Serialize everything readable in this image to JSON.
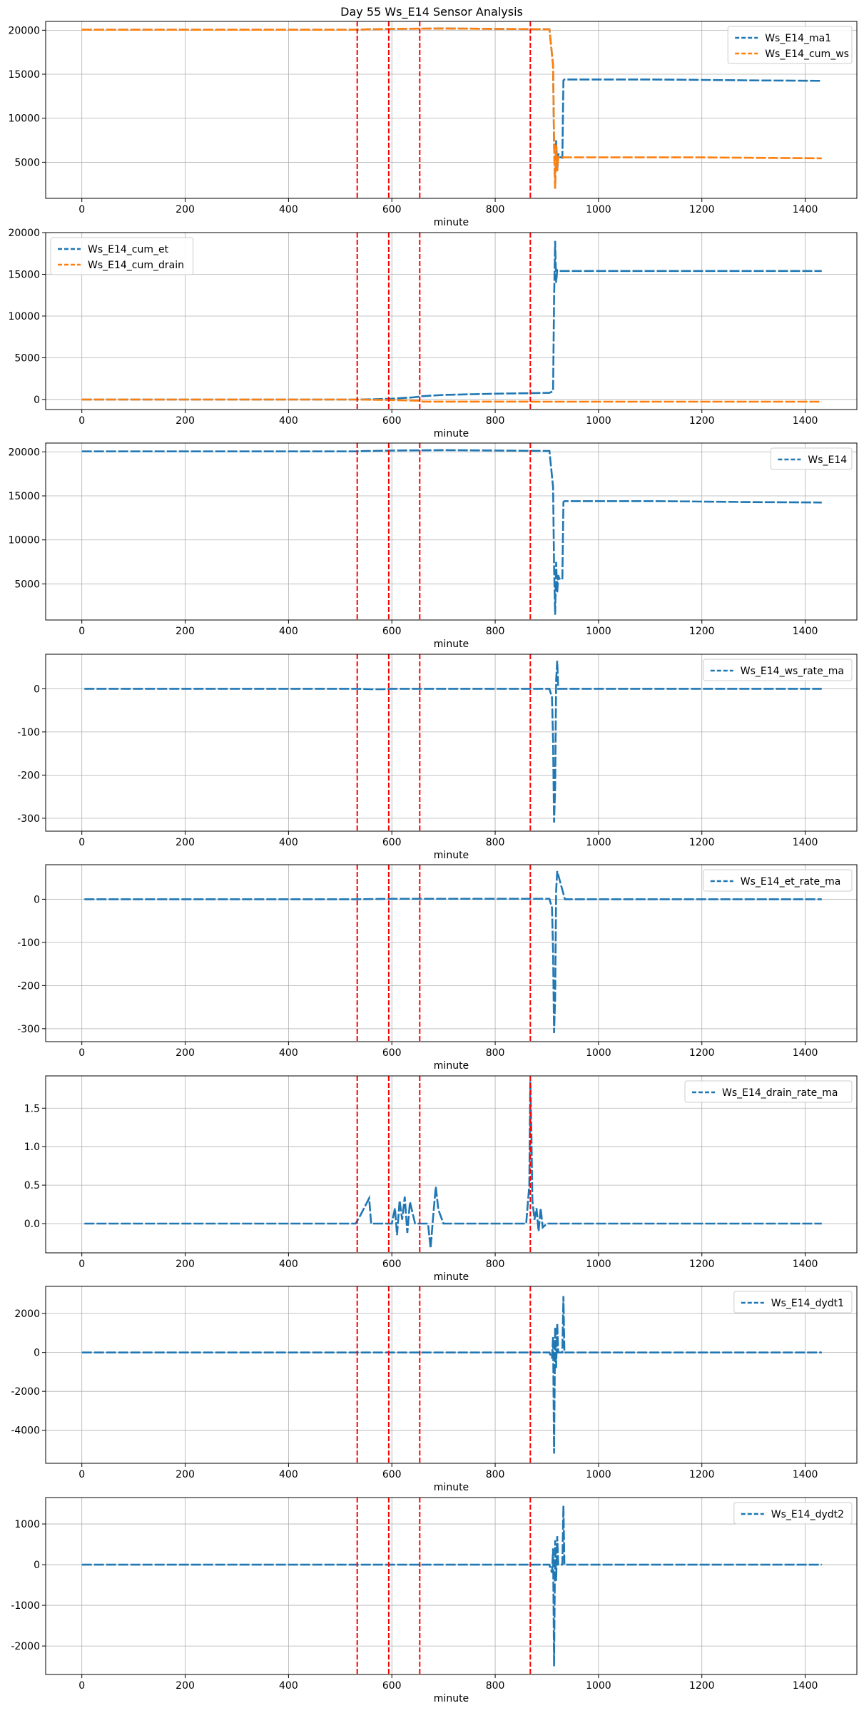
{
  "figure": {
    "title": "Day 55 Ws_E14 Sensor Analysis"
  },
  "colors": {
    "blue": "#1f77b4",
    "orange": "#ff7f0e",
    "red": "#ff0000",
    "grid": "#b0b0b0"
  },
  "event_lines": [
    533,
    594,
    654,
    868
  ],
  "chart_data": [
    {
      "type": "line",
      "title": "",
      "xlabel": "minute",
      "ylabel": "",
      "xlim": [
        -70,
        1500
      ],
      "ylim": [
        900,
        21000
      ],
      "xticks": [
        0,
        200,
        400,
        600,
        800,
        1000,
        1200,
        1400
      ],
      "yticks": [
        5000,
        10000,
        15000,
        20000
      ],
      "ytick_labels": [
        "5000",
        "10000",
        "15000",
        "20000"
      ],
      "legend_loc": "top-right",
      "series": [
        {
          "name": "Ws_E14_ma1",
          "color": "blue",
          "x": [
            0,
            532,
            536,
            600,
            700,
            800,
            905,
            912,
            914,
            916,
            918,
            920,
            922,
            924,
            930,
            932,
            934,
            936,
            1000,
            1100,
            1200,
            1300,
            1432
          ],
          "y": [
            20050,
            20050,
            20080,
            20150,
            20200,
            20150,
            20100,
            16000,
            7000,
            2000,
            7500,
            4000,
            6000,
            5600,
            5500,
            14300,
            14400,
            14400,
            14400,
            14400,
            14350,
            14300,
            14250
          ]
        },
        {
          "name": "Ws_E14_cum_ws",
          "color": "orange",
          "x": [
            0,
            532,
            536,
            600,
            700,
            800,
            905,
            912,
            914,
            916,
            918,
            920,
            922,
            926,
            1000,
            1100,
            1200,
            1300,
            1432
          ],
          "y": [
            20050,
            20050,
            20080,
            20150,
            20200,
            20150,
            20100,
            16000,
            7000,
            2000,
            7000,
            4000,
            5600,
            5550,
            5550,
            5550,
            5550,
            5500,
            5450
          ]
        }
      ]
    },
    {
      "type": "line",
      "title": "",
      "xlabel": "minute",
      "ylabel": "",
      "xlim": [
        -70,
        1500
      ],
      "ylim": [
        -1200,
        20000
      ],
      "xticks": [
        0,
        200,
        400,
        600,
        800,
        1000,
        1200,
        1400
      ],
      "yticks": [
        0,
        5000,
        10000,
        15000,
        20000
      ],
      "ytick_labels": [
        "0",
        "5000",
        "10000",
        "15000",
        "20000"
      ],
      "legend_loc": "top-left",
      "series": [
        {
          "name": "Ws_E14_cum_et",
          "color": "blue",
          "x": [
            0,
            532,
            560,
            600,
            640,
            660,
            700,
            800,
            860,
            905,
            912,
            914,
            916,
            918,
            920,
            922,
            930,
            1000,
            1100,
            1200,
            1300,
            1432
          ],
          "y": [
            0,
            0,
            20,
            100,
            250,
            400,
            550,
            700,
            750,
            800,
            1000,
            12000,
            19000,
            14000,
            15500,
            15400,
            15400,
            15400,
            15400,
            15400,
            15400,
            15400
          ]
        },
        {
          "name": "Ws_E14_cum_drain",
          "color": "orange",
          "x": [
            0,
            532,
            600,
            654,
            660,
            700,
            800,
            900,
            1000,
            1100,
            1200,
            1300,
            1432
          ],
          "y": [
            0,
            0,
            -60,
            -150,
            -250,
            -250,
            -250,
            -260,
            -260,
            -260,
            -260,
            -260,
            -260
          ]
        }
      ]
    },
    {
      "type": "line",
      "title": "",
      "xlabel": "minute",
      "ylabel": "",
      "xlim": [
        -70,
        1500
      ],
      "ylim": [
        900,
        21000
      ],
      "xticks": [
        0,
        200,
        400,
        600,
        800,
        1000,
        1200,
        1400
      ],
      "yticks": [
        5000,
        10000,
        15000,
        20000
      ],
      "ytick_labels": [
        "5000",
        "10000",
        "15000",
        "20000"
      ],
      "legend_loc": "top-right",
      "series": [
        {
          "name": "Ws_E14",
          "color": "blue",
          "x": [
            0,
            532,
            536,
            600,
            700,
            800,
            905,
            912,
            914,
            916,
            918,
            920,
            922,
            924,
            930,
            932,
            934,
            936,
            1000,
            1100,
            1200,
            1300,
            1432
          ],
          "y": [
            20050,
            20050,
            20080,
            20150,
            20200,
            20150,
            20100,
            16000,
            7000,
            1500,
            7500,
            4000,
            6000,
            5600,
            5500,
            14300,
            14400,
            14400,
            14400,
            14400,
            14350,
            14300,
            14250
          ]
        }
      ]
    },
    {
      "type": "line",
      "title": "",
      "xlabel": "minute",
      "ylabel": "",
      "xlim": [
        -70,
        1500
      ],
      "ylim": [
        -330,
        80
      ],
      "xticks": [
        0,
        200,
        400,
        600,
        800,
        1000,
        1200,
        1400
      ],
      "yticks": [
        -300,
        -200,
        -100,
        0
      ],
      "ytick_labels": [
        "-300",
        "-200",
        "-100",
        "0"
      ],
      "legend_loc": "top-right",
      "series": [
        {
          "name": "Ws_E14_ws_rate_ma",
          "color": "blue",
          "x": [
            5,
            532,
            560,
            580,
            600,
            700,
            800,
            905,
            910,
            912,
            914,
            916,
            918,
            920,
            922,
            924,
            1000,
            1100,
            1200,
            1300,
            1432
          ],
          "y": [
            0,
            0,
            -1,
            -1,
            0,
            0,
            0,
            0,
            -20,
            -120,
            -310,
            -230,
            20,
            65,
            0,
            0,
            0,
            0,
            0,
            0,
            0
          ]
        }
      ]
    },
    {
      "type": "line",
      "title": "",
      "xlabel": "minute",
      "ylabel": "",
      "xlim": [
        -70,
        1500
      ],
      "ylim": [
        -330,
        80
      ],
      "xticks": [
        0,
        200,
        400,
        600,
        800,
        1000,
        1200,
        1400
      ],
      "yticks": [
        -300,
        -200,
        -100,
        0
      ],
      "ytick_labels": [
        "-300",
        "-200",
        "-100",
        "0"
      ],
      "legend_loc": "top-right",
      "series": [
        {
          "name": "Ws_E14_et_rate_ma",
          "color": "blue",
          "x": [
            5,
            532,
            600,
            700,
            800,
            905,
            910,
            912,
            914,
            916,
            918,
            920,
            935,
            940,
            1000,
            1100,
            1200,
            1300,
            1432
          ],
          "y": [
            0,
            0,
            1,
            1,
            1,
            1,
            -20,
            -120,
            -310,
            -230,
            20,
            65,
            0,
            0,
            0,
            0,
            0,
            0,
            0
          ]
        }
      ]
    },
    {
      "type": "line",
      "title": "",
      "xlabel": "minute",
      "ylabel": "",
      "xlim": [
        -70,
        1500
      ],
      "ylim": [
        -0.38,
        1.92
      ],
      "xticks": [
        0,
        200,
        400,
        600,
        800,
        1000,
        1200,
        1400
      ],
      "yticks": [
        0.0,
        0.5,
        1.0,
        1.5
      ],
      "ytick_labels": [
        "0.0",
        "0.5",
        "1.0",
        "1.5"
      ],
      "legend_loc": "top-right",
      "series": [
        {
          "name": "Ws_E14_drain_rate_ma",
          "color": "blue",
          "x": [
            5,
            530,
            540,
            556,
            560,
            600,
            606,
            610,
            615,
            620,
            625,
            630,
            635,
            645,
            670,
            675,
            680,
            685,
            690,
            700,
            860,
            866,
            868,
            870,
            872,
            876,
            880,
            884,
            888,
            892,
            900,
            1000,
            1100,
            1200,
            1300,
            1432
          ],
          "y": [
            0,
            0,
            0.12,
            0.33,
            0,
            0,
            0.2,
            -0.15,
            0.3,
            0.05,
            0.35,
            -0.12,
            0.28,
            0,
            0,
            -0.32,
            0.1,
            0.48,
            0.18,
            0,
            0,
            0.5,
            1.85,
            1.2,
            0.3,
            0.05,
            0.2,
            -0.1,
            0.2,
            -0.05,
            0,
            0,
            0,
            0,
            0,
            0
          ]
        }
      ]
    },
    {
      "type": "line",
      "title": "",
      "xlabel": "minute",
      "ylabel": "",
      "xlim": [
        -70,
        1500
      ],
      "ylim": [
        -5700,
        3400
      ],
      "xticks": [
        0,
        200,
        400,
        600,
        800,
        1000,
        1200,
        1400
      ],
      "yticks": [
        -4000,
        -2000,
        0,
        2000
      ],
      "ytick_labels": [
        "-4000",
        "-2000",
        "0",
        "2000"
      ],
      "legend_loc": "top-right",
      "series": [
        {
          "name": "Ws_E14_dydt1",
          "color": "blue",
          "x": [
            0,
            905,
            910,
            912,
            914,
            916,
            918,
            920,
            922,
            928,
            930,
            932,
            934,
            940,
            1000,
            1100,
            1200,
            1300,
            1432
          ],
          "y": [
            0,
            0,
            -300,
            800,
            -5200,
            1300,
            -800,
            1500,
            0,
            0,
            0,
            2900,
            0,
            0,
            0,
            0,
            0,
            0,
            0
          ]
        }
      ]
    },
    {
      "type": "line",
      "title": "",
      "xlabel": "minute",
      "ylabel": "",
      "xlim": [
        -70,
        1500
      ],
      "ylim": [
        -2700,
        1650
      ],
      "xticks": [
        0,
        200,
        400,
        600,
        800,
        1000,
        1200,
        1400
      ],
      "yticks": [
        -2000,
        -1000,
        0,
        1000
      ],
      "ytick_labels": [
        "-2000",
        "-1000",
        "0",
        "1000"
      ],
      "legend_loc": "top-right",
      "series": [
        {
          "name": "Ws_E14_dydt2",
          "color": "blue",
          "x": [
            0,
            905,
            910,
            912,
            914,
            916,
            918,
            920,
            922,
            928,
            930,
            932,
            934,
            940,
            1000,
            1100,
            1200,
            1300,
            1432
          ],
          "y": [
            0,
            0,
            -200,
            400,
            -2500,
            600,
            -400,
            700,
            0,
            0,
            0,
            1450,
            0,
            0,
            0,
            0,
            0,
            0,
            0
          ]
        }
      ]
    }
  ]
}
